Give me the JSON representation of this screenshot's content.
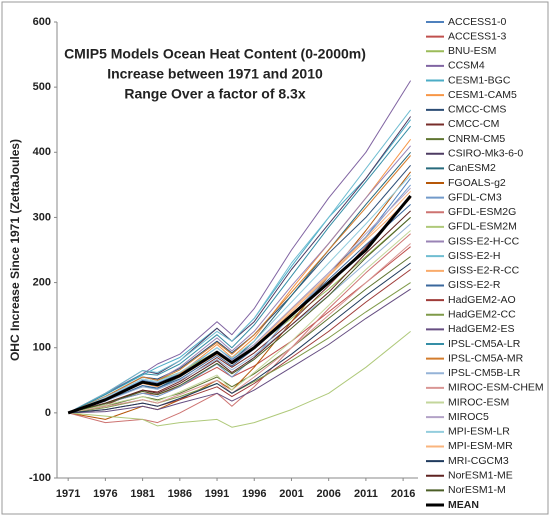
{
  "chart_data": {
    "type": "line",
    "title": [
      "CMIP5 Models Ocean Heat Content (0-2000m)",
      "Increase between 1971 and 2010",
      "Range Over a factor of 8.3x"
    ],
    "y_label": "OHC Increase Since 1971 (ZettaJoules)",
    "x": [
      1971,
      1976,
      1981,
      1983,
      1986,
      1991,
      1993,
      1996,
      2001,
      2006,
      2011,
      2017
    ],
    "xlim": [
      1969.5,
      2018
    ],
    "xticks": [
      1971,
      1976,
      1981,
      1986,
      1991,
      1996,
      2001,
      2006,
      2011,
      2016
    ],
    "ylim": [
      -100,
      600
    ],
    "yticks": [
      -100,
      0,
      100,
      200,
      300,
      400,
      500,
      600
    ],
    "grid": false,
    "legend": "right",
    "series": [
      {
        "name": "ACCESS1-0",
        "color": "#4f81bd",
        "width": 1,
        "values": [
          0,
          22,
          50,
          46,
          60,
          100,
          82,
          105,
          160,
          215,
          270,
          360
        ]
      },
      {
        "name": "ACCESS1-3",
        "color": "#c0504d",
        "width": 1,
        "values": [
          0,
          15,
          30,
          28,
          40,
          70,
          55,
          72,
          110,
          155,
          200,
          255
        ]
      },
      {
        "name": "BNU-ESM",
        "color": "#9bbb59",
        "width": 1,
        "values": [
          0,
          25,
          55,
          50,
          62,
          95,
          80,
          100,
          145,
          190,
          240,
          300
        ]
      },
      {
        "name": "CCSM4",
        "color": "#8064a2",
        "width": 1,
        "values": [
          0,
          30,
          60,
          75,
          90,
          140,
          120,
          160,
          250,
          330,
          400,
          510
        ]
      },
      {
        "name": "CESM1-BGC",
        "color": "#4bacc6",
        "width": 1,
        "values": [
          0,
          28,
          58,
          70,
          85,
          130,
          110,
          145,
          225,
          300,
          360,
          450
        ]
      },
      {
        "name": "CESM1-CAM5",
        "color": "#f79646",
        "width": 1,
        "values": [
          0,
          20,
          45,
          40,
          60,
          105,
          85,
          115,
          190,
          260,
          330,
          420
        ]
      },
      {
        "name": "CMCC-CMS",
        "color": "#2c4d75",
        "width": 1,
        "values": [
          0,
          25,
          55,
          52,
          68,
          110,
          92,
          120,
          180,
          245,
          300,
          380
        ]
      },
      {
        "name": "CMCC-CM",
        "color": "#772c2a",
        "width": 1,
        "values": [
          0,
          12,
          35,
          32,
          48,
          85,
          70,
          92,
          140,
          195,
          255,
          330
        ]
      },
      {
        "name": "CNRM-CM5",
        "color": "#5f7530",
        "width": 1,
        "values": [
          0,
          10,
          25,
          20,
          30,
          55,
          40,
          60,
          100,
          145,
          190,
          240
        ]
      },
      {
        "name": "CSIRO-Mk3-6-0",
        "color": "#4d3b62",
        "width": 1,
        "values": [
          0,
          30,
          65,
          60,
          80,
          130,
          110,
          140,
          220,
          290,
          360,
          455
        ]
      },
      {
        "name": "CanESM2",
        "color": "#276a7c",
        "width": 1,
        "values": [
          0,
          20,
          40,
          38,
          55,
          95,
          80,
          110,
          180,
          250,
          320,
          400
        ]
      },
      {
        "name": "FGOALS-g2",
        "color": "#b65708",
        "width": 1,
        "values": [
          0,
          -10,
          10,
          5,
          20,
          50,
          35,
          70,
          140,
          210,
          280,
          370
        ]
      },
      {
        "name": "GFDL-CM3",
        "color": "#729aca",
        "width": 1,
        "values": [
          0,
          15,
          30,
          25,
          40,
          75,
          55,
          85,
          150,
          210,
          270,
          350
        ]
      },
      {
        "name": "GFDL-ESM2G",
        "color": "#cd7371",
        "width": 1,
        "values": [
          0,
          -15,
          -10,
          -15,
          0,
          30,
          10,
          40,
          100,
          160,
          215,
          275
        ]
      },
      {
        "name": "GFDL-ESM2M",
        "color": "#afc97a",
        "width": 1,
        "values": [
          0,
          -5,
          -10,
          -20,
          -15,
          -10,
          -22,
          -15,
          5,
          30,
          70,
          125
        ]
      },
      {
        "name": "GISS-E2-H-CC",
        "color": "#9983b5",
        "width": 1,
        "values": [
          0,
          25,
          55,
          50,
          70,
          115,
          95,
          125,
          195,
          260,
          330,
          410
        ]
      },
      {
        "name": "GISS-E2-H",
        "color": "#6fbdd1",
        "width": 1,
        "values": [
          0,
          30,
          65,
          62,
          80,
          125,
          110,
          145,
          230,
          300,
          375,
          465
        ]
      },
      {
        "name": "GISS-E2-R-CC",
        "color": "#f9ab6b",
        "width": 1,
        "values": [
          0,
          20,
          45,
          42,
          55,
          90,
          75,
          100,
          155,
          210,
          265,
          330
        ]
      },
      {
        "name": "GISS-E2-R",
        "color": "#3a679c",
        "width": 1,
        "values": [
          0,
          18,
          42,
          38,
          52,
          88,
          72,
          98,
          150,
          205,
          258,
          320
        ]
      },
      {
        "name": "HadGEM2-AO",
        "color": "#9f3b38",
        "width": 1,
        "values": [
          0,
          5,
          15,
          10,
          20,
          40,
          25,
          45,
          85,
          125,
          170,
          220
        ]
      },
      {
        "name": "HadGEM2-CC",
        "color": "#7f9a48",
        "width": 1,
        "values": [
          0,
          8,
          20,
          15,
          25,
          45,
          30,
          48,
          80,
          115,
          155,
          200
        ]
      },
      {
        "name": "HadGEM2-ES",
        "color": "#664e82",
        "width": 1,
        "values": [
          0,
          2,
          10,
          5,
          15,
          30,
          18,
          35,
          70,
          105,
          145,
          190
        ]
      },
      {
        "name": "IPSL-CM5A-LR",
        "color": "#358ea6",
        "width": 1,
        "values": [
          0,
          28,
          60,
          58,
          75,
          120,
          100,
          135,
          210,
          285,
          355,
          440
        ]
      },
      {
        "name": "IPSL-CM5A-MR",
        "color": "#d37c2c",
        "width": 1,
        "values": [
          0,
          25,
          55,
          50,
          66,
          108,
          90,
          120,
          185,
          250,
          315,
          395
        ]
      },
      {
        "name": "IPSL-CM5B-LR",
        "color": "#95b3d7",
        "width": 1,
        "values": [
          0,
          18,
          40,
          36,
          50,
          82,
          66,
          88,
          135,
          180,
          230,
          290
        ]
      },
      {
        "name": "MIROC-ESM-CHEM",
        "color": "#d99694",
        "width": 1,
        "values": [
          0,
          10,
          20,
          15,
          28,
          50,
          30,
          55,
          100,
          150,
          200,
          260
        ]
      },
      {
        "name": "MIROC-ESM",
        "color": "#c3d69b",
        "width": 1,
        "values": [
          0,
          12,
          25,
          18,
          32,
          58,
          35,
          62,
          110,
          165,
          220,
          280
        ]
      },
      {
        "name": "MIROC5",
        "color": "#b3a2c7",
        "width": 1,
        "values": [
          0,
          22,
          48,
          45,
          58,
          95,
          80,
          105,
          160,
          215,
          275,
          345
        ]
      },
      {
        "name": "MPI-ESM-LR",
        "color": "#93cddd",
        "width": 1,
        "values": [
          0,
          24,
          52,
          48,
          62,
          100,
          84,
          110,
          170,
          230,
          290,
          365
        ]
      },
      {
        "name": "MPI-ESM-MR",
        "color": "#fab47d",
        "width": 1,
        "values": [
          0,
          20,
          46,
          42,
          56,
          92,
          78,
          102,
          158,
          212,
          268,
          340
        ]
      },
      {
        "name": "MRI-CGCM3",
        "color": "#1f3a5d",
        "width": 1,
        "values": [
          0,
          5,
          15,
          10,
          22,
          45,
          30,
          50,
          90,
          135,
          180,
          230
        ]
      },
      {
        "name": "NorESM1-ME",
        "color": "#5e2220",
        "width": 1,
        "values": [
          0,
          15,
          35,
          30,
          45,
          80,
          62,
          85,
          135,
          185,
          245,
          310
        ]
      },
      {
        "name": "NorESM1-M",
        "color": "#4b5e26",
        "width": 1,
        "values": [
          0,
          14,
          33,
          28,
          42,
          76,
          60,
          82,
          130,
          180,
          238,
          300
        ]
      },
      {
        "name": "MEAN",
        "color": "#000000",
        "width": 3,
        "values": [
          0,
          20,
          47,
          43,
          57,
          93,
          77,
          100,
          150,
          200,
          250,
          333
        ]
      }
    ]
  }
}
